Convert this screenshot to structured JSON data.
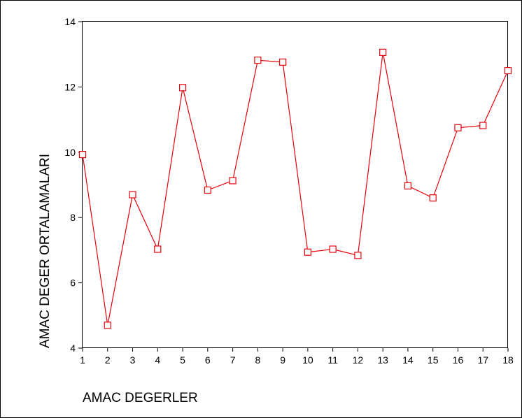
{
  "chart_data": {
    "type": "line",
    "title": "",
    "xlabel": "AMAC DEGERLER",
    "ylabel": "AMAC DEGER ORTALAMALARI",
    "x": [
      1,
      2,
      3,
      4,
      5,
      6,
      7,
      8,
      9,
      10,
      11,
      12,
      13,
      14,
      15,
      16,
      17,
      18
    ],
    "xticks": [
      "1",
      "2",
      "3",
      "4",
      "5",
      "6",
      "7",
      "8",
      "9",
      "10",
      "11",
      "12",
      "13",
      "14",
      "15",
      "16",
      "17",
      "18"
    ],
    "series": [
      {
        "values": [
          9.93,
          4.7,
          8.7,
          7.03,
          11.98,
          8.84,
          9.13,
          12.82,
          12.76,
          6.94,
          7.03,
          6.84,
          13.06,
          8.97,
          8.6,
          10.75,
          10.82,
          12.5
        ],
        "color": "#e8000b",
        "marker": "square-open"
      }
    ],
    "ylim": [
      4,
      14
    ],
    "yticks": [
      4,
      6,
      8,
      10,
      12,
      14
    ],
    "xlim": [
      1,
      18
    ],
    "grid": false,
    "legend": "none"
  }
}
